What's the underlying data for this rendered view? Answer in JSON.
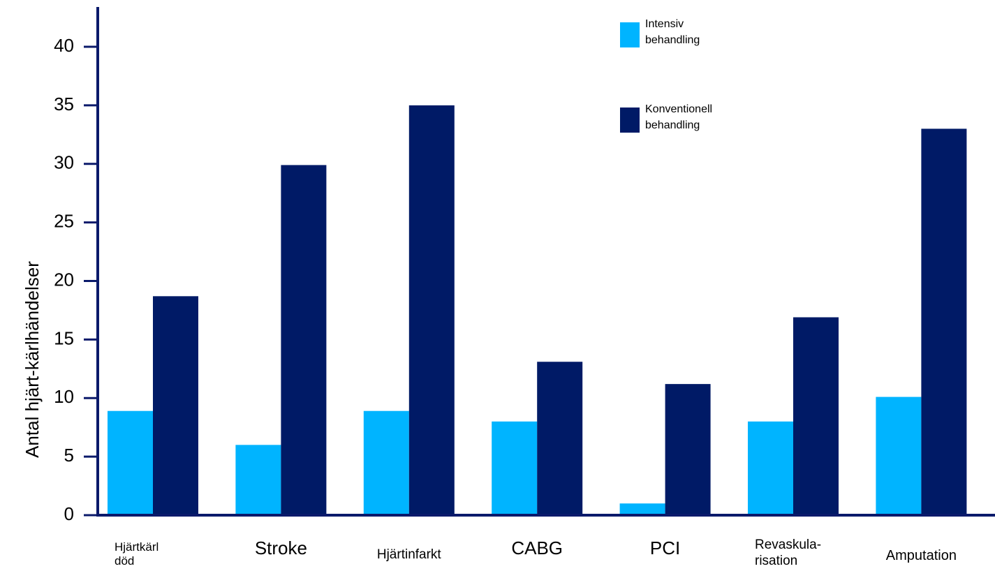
{
  "chart_data": {
    "type": "bar",
    "y_label": "Antal hjärt-kärlhändelser",
    "categories": [
      "Hjärtkärl\ndöd",
      "Stroke",
      "Hjärtinfarkt",
      "CABG",
      "PCI",
      "Revaskula-\nrisation",
      "Amputation"
    ],
    "series": [
      {
        "name": "Intensiv\nbehandling",
        "color": "#00b4ff",
        "values": [
          8.9,
          6,
          8.9,
          8,
          1,
          8,
          10.1
        ]
      },
      {
        "name": "Konventionell\nbehandling",
        "color": "#001a66",
        "values": [
          18.7,
          29.9,
          35,
          13.1,
          11.2,
          16.9,
          33
        ]
      }
    ],
    "ylim": [
      0,
      43.4
    ],
    "yticks": [
      0,
      5,
      10,
      15,
      20,
      25,
      30,
      35,
      40
    ],
    "grid": false,
    "legend": "top-right"
  }
}
